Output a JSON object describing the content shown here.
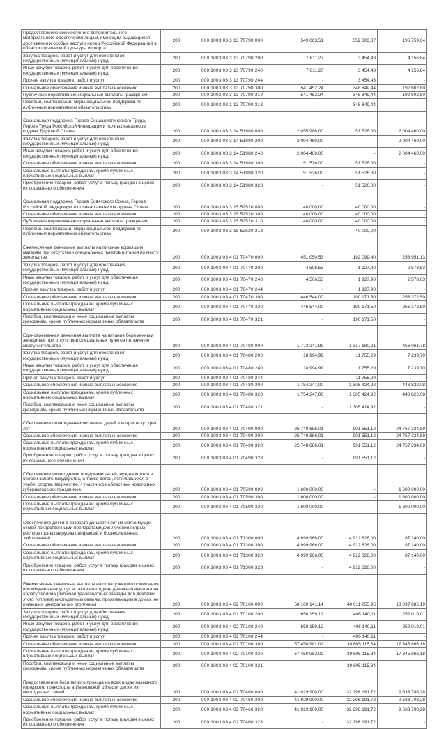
{
  "table": {
    "rows": [
      {
        "name": "Предоставление ежемесячного дополнительного материального обеспечения лицам, имеющим выдающиеся достижения и особые заслуги перед Российской Федерацией в области физической культуры и спорта",
        "line_code": "200",
        "budget_code": "000 1003 03 3 13 70790 000",
        "approved": "549 063,51",
        "executed": "352 303,87",
        "unexecuted": "196 759,64",
        "section": true
      },
      {
        "name": "Закупка товаров, работ и услуг для обеспечения государственных (муниципальных) нужд",
        "line_code": "200",
        "budget_code": "000 1003 03 3 13 70790 200",
        "approved": "7 611,27",
        "executed": "3 454,43",
        "unexecuted": "4 156,84",
        "section": false
      },
      {
        "name": "Иные закупки товаров, работ и услуг для обеспечения государственных (муниципальных) нужд",
        "line_code": "200",
        "budget_code": "000 1003 03 3 13 70790 240",
        "approved": "7 611,27",
        "executed": "3 454,43",
        "unexecuted": "4 156,84",
        "section": false
      },
      {
        "name": "Прочая закупка товаров, работ и услуг",
        "line_code": "200",
        "budget_code": "000 1003 03 3 13 70790 244",
        "approved": "-",
        "executed": "3 454,43",
        "unexecuted": "-",
        "section": false
      },
      {
        "name": "Социальное обеспечение и иные выплаты населению",
        "line_code": "200",
        "budget_code": "000 1003 03 3 13 70790 300",
        "approved": "541 452,24",
        "executed": "348 849,44",
        "unexecuted": "192 602,80",
        "section": false
      },
      {
        "name": "Публичные нормативные социальные выплаты гражданам",
        "line_code": "200",
        "budget_code": "000 1003 03 3 13 70790 310",
        "approved": "541 452,24",
        "executed": "348 849,44",
        "unexecuted": "192 602,80",
        "section": false
      },
      {
        "name": "Пособия, компенсации, меры социальной поддержки по публичным нормативным обязательствам",
        "line_code": "200",
        "budget_code": "000 1003 03 3 13 70790 313",
        "approved": "-",
        "executed": "348 849,44",
        "unexecuted": "-",
        "section": false
      },
      {
        "name": "Социальная поддержка Героев Социалистического Труда, Героев Труда Российской Федерации и полных кавалеров ордена Трудовой Славы",
        "line_code": "200",
        "budget_code": "000 1003 03 3 14 51980 000",
        "approved": "2 055 986,00",
        "executed": "51 526,00",
        "unexecuted": "2 004 460,00",
        "section": true
      },
      {
        "name": "Закупка товаров, работ и услуг для обеспечения государственных (муниципальных) нужд",
        "line_code": "200",
        "budget_code": "000 1003 03 3 14 51980 200",
        "approved": "2 004 460,00",
        "executed": "-",
        "unexecuted": "2 004 460,00",
        "section": false
      },
      {
        "name": "Иные закупки товаров, работ и услуг для обеспечения государственных (муниципальных) нужд",
        "line_code": "200",
        "budget_code": "000 1003 03 3 14 51980 240",
        "approved": "2 004 460,00",
        "executed": "-",
        "unexecuted": "2 004 460,00",
        "section": false
      },
      {
        "name": "Социальное обеспечение и иные выплаты населению",
        "line_code": "200",
        "budget_code": "000 1003 03 3 14 51980 300",
        "approved": "51 526,00",
        "executed": "51 526,00",
        "unexecuted": "-",
        "section": false
      },
      {
        "name": "Социальные выплаты гражданам, кроме публичных нормативных социальных выплат",
        "line_code": "200",
        "budget_code": "000 1003 03 3 14 51980 320",
        "approved": "51 526,00",
        "executed": "51 526,00",
        "unexecuted": "-",
        "section": false
      },
      {
        "name": "Приобретение товаров, работ, услуг в пользу граждан в целях их социального обеспечения",
        "line_code": "200",
        "budget_code": "000 1003 03 3 14 51980 323",
        "approved": "-",
        "executed": "51 526,00",
        "unexecuted": "-",
        "section": false
      },
      {
        "name": "Социальная поддержка Героев Советского Союза, Героев Российской Федерации и полных кавалеров ордена Славы",
        "line_code": "200",
        "budget_code": "000 1003 03 3 15 52520 000",
        "approved": "40 000,00",
        "executed": "40 000,00",
        "unexecuted": "-",
        "section": true
      },
      {
        "name": "Социальное обеспечение и иные выплаты населению",
        "line_code": "200",
        "budget_code": "000 1003 03 3 15 52520 300",
        "approved": "40 000,00",
        "executed": "40 000,00",
        "unexecuted": "-",
        "section": false
      },
      {
        "name": "Публичные нормативные социальные выплаты гражданам",
        "line_code": "200",
        "budget_code": "000 1003 03 3 15 52520 310",
        "approved": "40 000,00",
        "executed": "40 000,00",
        "unexecuted": "-",
        "section": false
      },
      {
        "name": "Пособия, компенсации, меры социальной поддержки по публичным нормативным обязательствам",
        "line_code": "200",
        "budget_code": "000 1003 03 3 15 52520 313",
        "approved": "-",
        "executed": "40 000,00",
        "unexecuted": "-",
        "section": false
      },
      {
        "name": "Ежемесячные денежные выплаты на питание кормящим матерям при отсутствии специальных пунктов питания по месту жительства",
        "line_code": "200",
        "budget_code": "000 1003 03 4 01 70470 000",
        "approved": "451 050,53",
        "executed": "192 099,40",
        "unexecuted": "258 951,13",
        "section": true
      },
      {
        "name": "Закупка товаров, работ и услуг для обеспечения государственных (муниципальных) нужд",
        "line_code": "200",
        "budget_code": "000 1003 03 4 01 70470 200",
        "approved": "4 506,53",
        "executed": "1 927,90",
        "unexecuted": "2 578,63",
        "section": false
      },
      {
        "name": "Иные закупки товаров, работ и услуг для обеспечения государственных (муниципальных) нужд",
        "line_code": "200",
        "budget_code": "000 1003 03 4 01 70470 240",
        "approved": "4 506,53",
        "executed": "1 927,90",
        "unexecuted": "2 578,63",
        "section": false
      },
      {
        "name": "Прочая закупка товаров, работ и услуг",
        "line_code": "200",
        "budget_code": "000 1003 03 4 01 70470 244",
        "approved": "-",
        "executed": "1 927,90",
        "unexecuted": "-",
        "section": false
      },
      {
        "name": "Социальное обеспечение и иные выплаты населению",
        "line_code": "200",
        "budget_code": "000 1003 03 4 01 70470 300",
        "approved": "446 544,00",
        "executed": "190 171,50",
        "unexecuted": "256 372,50",
        "section": false
      },
      {
        "name": "Социальные выплаты гражданам, кроме публичных нормативных социальных выплат",
        "line_code": "200",
        "budget_code": "000 1003 03 4 01 70470 320",
        "approved": "446 544,00",
        "executed": "190 171,50",
        "unexecuted": "256 372,50",
        "section": false
      },
      {
        "name": "Пособия, компенсации и иные социальные выплаты гражданам, кроме публичных нормативных обязательств",
        "line_code": "200",
        "budget_code": "000 1003 03 4 01 70470 321",
        "approved": "-",
        "executed": "190 171,50",
        "unexecuted": "-",
        "section": false
      },
      {
        "name": "Единовременная денежная выплата на питание беременным женщинам при отсутствии специальных пунктов питания по месту жительства",
        "line_code": "200",
        "budget_code": "000 1003 03 4 01 70480 000",
        "approved": "1 773 241,99",
        "executed": "1 317 180,21",
        "unexecuted": "456 061,78",
        "section": true
      },
      {
        "name": "Закупка товаров, работ и услуг для обеспечения государственных (муниципальных) нужд",
        "line_code": "200",
        "budget_code": "000 1003 03 4 01 70480 200",
        "approved": "18 994,99",
        "executed": "11 755,29",
        "unexecuted": "7 239,70",
        "section": false
      },
      {
        "name": "Иные закупки товаров, работ и услуг для обеспечения государственных (муниципальных) нужд",
        "line_code": "200",
        "budget_code": "000 1003 03 4 01 70480 240",
        "approved": "18 994,99",
        "executed": "11 755,29",
        "unexecuted": "7 239,70",
        "section": false
      },
      {
        "name": "Прочая закупка товаров, работ и услуг",
        "line_code": "200",
        "budget_code": "000 1003 03 4 01 70480 244",
        "approved": "-",
        "executed": "11 755,29",
        "unexecuted": "-",
        "section": false
      },
      {
        "name": "Социальное обеспечение и иные выплаты населению",
        "line_code": "200",
        "budget_code": "000 1003 03 4 01 70480 300",
        "approved": "1 754 247,00",
        "executed": "1 305 424,92",
        "unexecuted": "448 822,08",
        "section": false
      },
      {
        "name": "Социальные выплаты гражданам, кроме публичных нормативных социальных выплат",
        "line_code": "200",
        "budget_code": "000 1003 03 4 01 70480 320",
        "approved": "1 754 247,00",
        "executed": "1 305 424,92",
        "unexecuted": "448 822,08",
        "section": false
      },
      {
        "name": "Пособия, компенсации и иные социальные выплаты гражданам, кроме публичных нормативных обязательств",
        "line_code": "200",
        "budget_code": "000 1003 03 4 01 70480 321",
        "approved": "-",
        "executed": "1 305 424,92",
        "unexecuted": "-",
        "section": false
      },
      {
        "name": "Обеспечение полноценным питанием детей в возрасте до трех лет",
        "line_code": "200",
        "budget_code": "000 1003 03 4 01 70490 000",
        "approved": "25 748 886,01",
        "executed": "991 551,12",
        "unexecuted": "24 757 334,89",
        "section": true
      },
      {
        "name": "Социальное обеспечение и иные выплаты населению",
        "line_code": "200",
        "budget_code": "000 1003 03 4 01 70490 300",
        "approved": "25 748 886,01",
        "executed": "991 551,12",
        "unexecuted": "24 757 334,89",
        "section": false
      },
      {
        "name": "Социальные выплаты гражданам, кроме публичных нормативных социальных выплат",
        "line_code": "200",
        "budget_code": "000 1003 03 4 01 70490 320",
        "approved": "25 748 886,01",
        "executed": "991 551,12",
        "unexecuted": "24 757 334,89",
        "section": false
      },
      {
        "name": "Приобретение товаров, работ, услуг в пользу граждан в целях их социального обеспечения",
        "line_code": "200",
        "budget_code": "000 1003 03 4 01 70490 323",
        "approved": "-",
        "executed": "991 551,12",
        "unexecuted": "-",
        "section": false
      },
      {
        "name": "Обеспечение новогодними подарками детей, нуждающихся в особой заботе государства, а также детей, отличившихся в учебе, спорте, творчестве, - участников областных новогодних губернаторских праздников",
        "line_code": "200",
        "budget_code": "000 1003 03 4 01 70590 000",
        "approved": "1 600 000,00",
        "executed": "-",
        "unexecuted": "1 600 000,00",
        "section": true
      },
      {
        "name": "Социальное обеспечение и иные выплаты населению",
        "line_code": "200",
        "budget_code": "000 1003 03 4 01 70590 300",
        "approved": "1 600 000,00",
        "executed": "-",
        "unexecuted": "1 600 000,00",
        "section": false
      },
      {
        "name": "Социальные выплаты гражданам, кроме публичных нормативных социальных выплат",
        "line_code": "200",
        "budget_code": "000 1003 03 4 01 70590 320",
        "approved": "1 600 000,00",
        "executed": "-",
        "unexecuted": "1 600 000,00",
        "section": false
      },
      {
        "name": "Обеспечение детей в возрасте до шести лет из малоимущих семей лекарственными препаратами для лечения острых респираторных вирусных инфекций и бронхолегочных заболеваний",
        "line_code": "200",
        "budget_code": "000 1003 03 4 01 71300 000",
        "approved": "4 999 966,00",
        "executed": "4 912 826,00",
        "unexecuted": "87 140,00",
        "section": true
      },
      {
        "name": "Социальное обеспечение и иные выплаты населению",
        "line_code": "200",
        "budget_code": "000 1003 03 4 01 71300 300",
        "approved": "4 999 966,00",
        "executed": "4 912 826,00",
        "unexecuted": "87 140,00",
        "section": false
      },
      {
        "name": "Социальные выплаты гражданам, кроме публичных нормативных социальных выплат",
        "line_code": "200",
        "budget_code": "000 1003 03 4 01 71300 320",
        "approved": "4 999 966,00",
        "executed": "4 912 826,00",
        "unexecuted": "87 140,00",
        "section": false
      },
      {
        "name": "Приобретение товаров, работ, услуг в пользу граждан в целях их социального обеспечения",
        "line_code": "200",
        "budget_code": "000 1003 03 4 01 71300 323",
        "approved": "-",
        "executed": "4 912 826,00",
        "unexecuted": "-",
        "section": false
      },
      {
        "name": "Ежемесячные денежные выплаты на оплату жилого помещения и коммунальных услуг, а также ежегодная денежная выплата на оплату топлива (включая транспортные расходы для доставки этого топлива) многодетным семьям, проживающим в домах, не имеющих центрального отопления",
        "line_code": "200",
        "budget_code": "000 1003 03 4 02 70100 000",
        "approved": "58 109 141,14",
        "executed": "40 011 255,95",
        "unexecuted": "18 097 885,19",
        "section": true
      },
      {
        "name": "Закупка товаров, работ и услуг для обеспечения государственных (муниципальных) нужд",
        "line_code": "200",
        "budget_code": "000 1003 03 4 02 70100 200",
        "approved": "658 159,12",
        "executed": "406 140,11",
        "unexecuted": "252 019,01",
        "section": false
      },
      {
        "name": "Иные закупки товаров, работ и услуг для обеспечения государственных (муниципальных) нужд",
        "line_code": "200",
        "budget_code": "000 1003 03 4 02 70100 240",
        "approved": "658 159,12",
        "executed": "406 140,11",
        "unexecuted": "252 019,01",
        "section": false
      },
      {
        "name": "Прочая закупка товаров, работ и услуг",
        "line_code": "200",
        "budget_code": "000 1003 03 4 02 70100 244",
        "approved": "-",
        "executed": "406 140,11",
        "unexecuted": "-",
        "section": false
      },
      {
        "name": "Социальное обеспечение и иные выплаты населению",
        "line_code": "200",
        "budget_code": "000 1003 03 4 02 70100 300",
        "approved": "57 450 982,02",
        "executed": "39 605 115,84",
        "unexecuted": "17 845 866,18",
        "section": false
      },
      {
        "name": "Социальные выплаты гражданам, кроме публичных нормативных социальных выплат",
        "line_code": "200",
        "budget_code": "000 1003 03 4 02 70100 320",
        "approved": "57 450 982,02",
        "executed": "39 605 115,84",
        "unexecuted": "17 845 866,18",
        "section": false
      },
      {
        "name": "Пособия, компенсации и иные социальные выплаты гражданам, кроме публичных нормативных обязательств",
        "line_code": "200",
        "budget_code": "000 1003 03 4 02 70100 321",
        "approved": "-",
        "executed": "39 605 115,84",
        "unexecuted": "-",
        "section": false
      },
      {
        "name": "Предоставление бесплатного проезда на всех видах наземного городского транспорта в Ивановской области детям из многодетных семей",
        "line_code": "200",
        "budget_code": "000 1003 03 4 02 70460 000",
        "approved": "41 929 900,00",
        "executed": "32 296 191,72",
        "unexecuted": "9 633 708,28",
        "section": true
      },
      {
        "name": "Социальное обеспечение и иные выплаты населению",
        "line_code": "200",
        "budget_code": "000 1003 03 4 02 70460 300",
        "approved": "41 929 900,00",
        "executed": "32 296 191,72",
        "unexecuted": "9 633 708,28",
        "section": false
      },
      {
        "name": "Социальные выплаты гражданам, кроме публичных нормативных социальных выплат",
        "line_code": "200",
        "budget_code": "000 1003 03 4 02 70460 320",
        "approved": "41 929 900,00",
        "executed": "32 296 191,72",
        "unexecuted": "9 633 708,28",
        "section": false
      },
      {
        "name": "Приобретение товаров, работ, услуг в пользу граждан в целях их социального обеспечения",
        "line_code": "200",
        "budget_code": "000 1003 03 4 02 70460 323",
        "approved": "-",
        "executed": "32 296 191,72",
        "unexecuted": "-",
        "section": false
      }
    ]
  }
}
